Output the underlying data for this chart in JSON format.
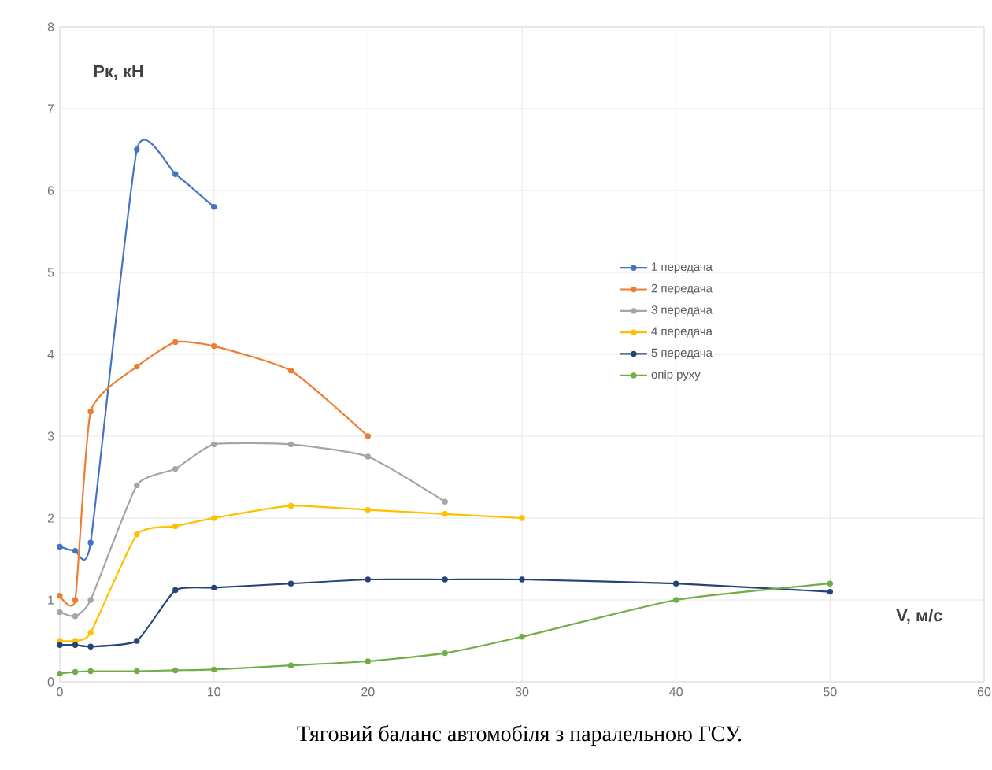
{
  "chart_data": {
    "type": "line",
    "title": "Тяговий баланс автомобіля з паралельною ГСУ.",
    "xlabel": "V, м/с",
    "ylabel": "Pк, кН",
    "xlim": [
      0,
      60
    ],
    "xticks": [
      0,
      10,
      20,
      30,
      40,
      50,
      60
    ],
    "ylim": [
      0,
      8
    ],
    "yticks": [
      0,
      1,
      2,
      3,
      4,
      5,
      6,
      7,
      8
    ],
    "grid": true,
    "legend": "right",
    "marker": "circle",
    "line_style": "solid",
    "series": [
      {
        "name": "1 передача",
        "color": "#4472c4",
        "x": [
          0,
          1,
          2,
          5,
          7.5,
          10
        ],
        "values": [
          1.65,
          1.6,
          1.7,
          6.5,
          6.2,
          5.8
        ]
      },
      {
        "name": "2 передача",
        "color": "#ed7d31",
        "x": [
          0,
          1,
          2,
          5,
          7.5,
          10,
          15,
          20
        ],
        "values": [
          1.05,
          1.0,
          3.3,
          3.85,
          4.15,
          4.1,
          3.8,
          3.0
        ]
      },
      {
        "name": "3 передача",
        "color": "#a5a5a5",
        "x": [
          0,
          1,
          2,
          5,
          7.5,
          10,
          15,
          20,
          25
        ],
        "values": [
          0.85,
          0.8,
          1.0,
          2.4,
          2.6,
          2.9,
          2.9,
          2.75,
          2.2
        ]
      },
      {
        "name": "4 передача",
        "color": "#ffc000",
        "x": [
          0,
          1,
          2,
          5,
          7.5,
          10,
          15,
          20,
          25,
          30
        ],
        "values": [
          0.5,
          0.5,
          0.6,
          1.8,
          1.9,
          2.0,
          2.15,
          2.1,
          2.05,
          2.0
        ]
      },
      {
        "name": "5 передача",
        "color": "#264478",
        "x": [
          0,
          1,
          2,
          5,
          7.5,
          10,
          15,
          20,
          25,
          30,
          40,
          50
        ],
        "values": [
          0.45,
          0.45,
          0.43,
          0.5,
          1.12,
          1.15,
          1.2,
          1.25,
          1.25,
          1.25,
          1.2,
          1.1
        ]
      },
      {
        "name": "опір руху",
        "color": "#70ad47",
        "x": [
          0,
          1,
          2,
          5,
          7.5,
          10,
          15,
          20,
          25,
          30,
          40,
          50
        ],
        "values": [
          0.1,
          0.12,
          0.13,
          0.13,
          0.14,
          0.15,
          0.2,
          0.25,
          0.35,
          0.55,
          1.0,
          1.2
        ]
      }
    ]
  }
}
